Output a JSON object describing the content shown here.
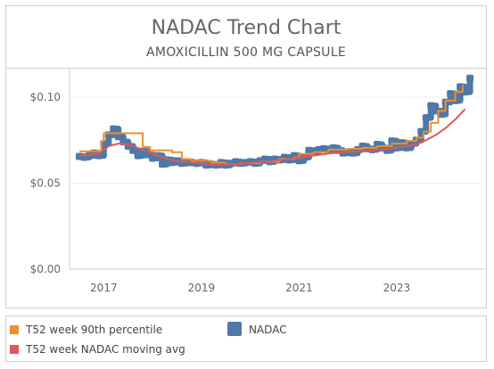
{
  "chart_data": {
    "type": "line",
    "title": "NADAC Trend Chart",
    "subtitle": "AMOXICILLIN 500 MG CAPSULE",
    "xlabel": "",
    "ylabel": "",
    "xlim": [
      2016.3,
      2024.7
    ],
    "ylim": [
      0,
      0.115
    ],
    "x_ticks": [
      {
        "value": 2017,
        "label": "2017"
      },
      {
        "value": 2019,
        "label": "2019"
      },
      {
        "value": 2021,
        "label": "2021"
      },
      {
        "value": 2023,
        "label": "2023"
      }
    ],
    "y_ticks": [
      {
        "value": 0,
        "label": "$0.00"
      },
      {
        "value": 0.05,
        "label": "$0.05"
      },
      {
        "value": 0.1,
        "label": "$0.10"
      }
    ],
    "grid": true,
    "legend_position": "bottom",
    "series": [
      {
        "name": "T52 week 90th percentile",
        "color": "#f28e2b",
        "style": "step",
        "points": [
          [
            2016.5,
            0.0685
          ],
          [
            2016.9,
            0.0685
          ],
          [
            2016.95,
            0.0745
          ],
          [
            2017.0,
            0.079
          ],
          [
            2017.7,
            0.079
          ],
          [
            2017.8,
            0.071
          ],
          [
            2017.95,
            0.069
          ],
          [
            2018.4,
            0.068
          ],
          [
            2018.6,
            0.064
          ],
          [
            2018.8,
            0.063
          ],
          [
            2019.2,
            0.062
          ],
          [
            2019.5,
            0.061
          ],
          [
            2019.8,
            0.0615
          ],
          [
            2020.2,
            0.0625
          ],
          [
            2020.6,
            0.064
          ],
          [
            2020.9,
            0.065
          ],
          [
            2021.0,
            0.067
          ],
          [
            2021.3,
            0.068
          ],
          [
            2021.6,
            0.0695
          ],
          [
            2022.0,
            0.07
          ],
          [
            2022.3,
            0.0705
          ],
          [
            2022.6,
            0.0715
          ],
          [
            2022.9,
            0.073
          ],
          [
            2023.2,
            0.0745
          ],
          [
            2023.4,
            0.0765
          ],
          [
            2023.55,
            0.08
          ],
          [
            2023.7,
            0.085
          ],
          [
            2023.85,
            0.092
          ],
          [
            2024.0,
            0.098
          ],
          [
            2024.2,
            0.103
          ],
          [
            2024.35,
            0.107
          ]
        ]
      },
      {
        "name": "T52 week NADAC moving avg",
        "color": "#e15759",
        "style": "line",
        "points": [
          [
            2016.5,
            0.066
          ],
          [
            2016.7,
            0.0665
          ],
          [
            2016.9,
            0.067
          ],
          [
            2017.1,
            0.0715
          ],
          [
            2017.3,
            0.073
          ],
          [
            2017.5,
            0.0725
          ],
          [
            2017.7,
            0.0705
          ],
          [
            2017.9,
            0.0685
          ],
          [
            2018.1,
            0.066
          ],
          [
            2018.3,
            0.064
          ],
          [
            2018.5,
            0.0628
          ],
          [
            2018.8,
            0.062
          ],
          [
            2019.0,
            0.0613
          ],
          [
            2019.3,
            0.0607
          ],
          [
            2019.6,
            0.0608
          ],
          [
            2019.9,
            0.0615
          ],
          [
            2020.2,
            0.0622
          ],
          [
            2020.5,
            0.063
          ],
          [
            2020.8,
            0.064
          ],
          [
            2021.0,
            0.0648
          ],
          [
            2021.3,
            0.066
          ],
          [
            2021.6,
            0.0672
          ],
          [
            2021.9,
            0.068
          ],
          [
            2022.2,
            0.0685
          ],
          [
            2022.5,
            0.069
          ],
          [
            2022.8,
            0.0698
          ],
          [
            2023.1,
            0.071
          ],
          [
            2023.4,
            0.0725
          ],
          [
            2023.6,
            0.075
          ],
          [
            2023.8,
            0.078
          ],
          [
            2024.0,
            0.082
          ],
          [
            2024.2,
            0.087
          ],
          [
            2024.4,
            0.093
          ]
        ]
      },
      {
        "name": "NADAC",
        "color": "#4e79a7",
        "style": "marks",
        "points": [
          [
            2016.5,
            0.0655
          ],
          [
            2016.6,
            0.065
          ],
          [
            2016.7,
            0.066
          ],
          [
            2016.8,
            0.0675
          ],
          [
            2016.9,
            0.066
          ],
          [
            2017.0,
            0.073
          ],
          [
            2017.1,
            0.078
          ],
          [
            2017.2,
            0.0815
          ],
          [
            2017.3,
            0.077
          ],
          [
            2017.4,
            0.074
          ],
          [
            2017.5,
            0.0715
          ],
          [
            2017.6,
            0.069
          ],
          [
            2017.7,
            0.066
          ],
          [
            2017.8,
            0.0685
          ],
          [
            2017.9,
            0.0665
          ],
          [
            2018.0,
            0.0645
          ],
          [
            2018.1,
            0.066
          ],
          [
            2018.2,
            0.061
          ],
          [
            2018.3,
            0.0635
          ],
          [
            2018.4,
            0.062
          ],
          [
            2018.5,
            0.063
          ],
          [
            2018.6,
            0.0615
          ],
          [
            2018.7,
            0.0625
          ],
          [
            2018.8,
            0.062
          ],
          [
            2018.9,
            0.0615
          ],
          [
            2019.0,
            0.062
          ],
          [
            2019.1,
            0.0605
          ],
          [
            2019.2,
            0.061
          ],
          [
            2019.3,
            0.0605
          ],
          [
            2019.4,
            0.062
          ],
          [
            2019.5,
            0.0605
          ],
          [
            2019.6,
            0.0615
          ],
          [
            2019.7,
            0.0625
          ],
          [
            2019.8,
            0.0615
          ],
          [
            2019.9,
            0.062
          ],
          [
            2020.0,
            0.0625
          ],
          [
            2020.1,
            0.0615
          ],
          [
            2020.2,
            0.063
          ],
          [
            2020.3,
            0.064
          ],
          [
            2020.4,
            0.0625
          ],
          [
            2020.5,
            0.064
          ],
          [
            2020.6,
            0.0635
          ],
          [
            2020.7,
            0.065
          ],
          [
            2020.8,
            0.0635
          ],
          [
            2020.9,
            0.066
          ],
          [
            2021.0,
            0.063
          ],
          [
            2021.1,
            0.065
          ],
          [
            2021.2,
            0.069
          ],
          [
            2021.3,
            0.068
          ],
          [
            2021.4,
            0.0695
          ],
          [
            2021.5,
            0.07
          ],
          [
            2021.6,
            0.069
          ],
          [
            2021.7,
            0.0705
          ],
          [
            2021.8,
            0.069
          ],
          [
            2021.9,
            0.0675
          ],
          [
            2022.0,
            0.068
          ],
          [
            2022.1,
            0.0675
          ],
          [
            2022.2,
            0.0695
          ],
          [
            2022.3,
            0.0715
          ],
          [
            2022.4,
            0.07
          ],
          [
            2022.5,
            0.0695
          ],
          [
            2022.6,
            0.0725
          ],
          [
            2022.7,
            0.0705
          ],
          [
            2022.8,
            0.069
          ],
          [
            2022.9,
            0.0745
          ],
          [
            2023.0,
            0.0705
          ],
          [
            2023.1,
            0.0735
          ],
          [
            2023.2,
            0.0705
          ],
          [
            2023.3,
            0.073
          ],
          [
            2023.4,
            0.075
          ],
          [
            2023.5,
            0.08
          ],
          [
            2023.6,
            0.088
          ],
          [
            2023.7,
            0.095
          ],
          [
            2023.8,
            0.092
          ],
          [
            2023.9,
            0.09
          ],
          [
            2024.0,
            0.097
          ],
          [
            2024.1,
            0.102
          ],
          [
            2024.2,
            0.098
          ],
          [
            2024.3,
            0.106
          ],
          [
            2024.4,
            0.103
          ],
          [
            2024.5,
            0.111
          ]
        ]
      }
    ]
  },
  "legend": {
    "items": [
      {
        "label": "T52 week 90th percentile",
        "color": "#f28e2b"
      },
      {
        "label": "NADAC",
        "color": "#4e79a7"
      },
      {
        "label": "T52 week NADAC moving avg",
        "color": "#e15759"
      }
    ]
  }
}
